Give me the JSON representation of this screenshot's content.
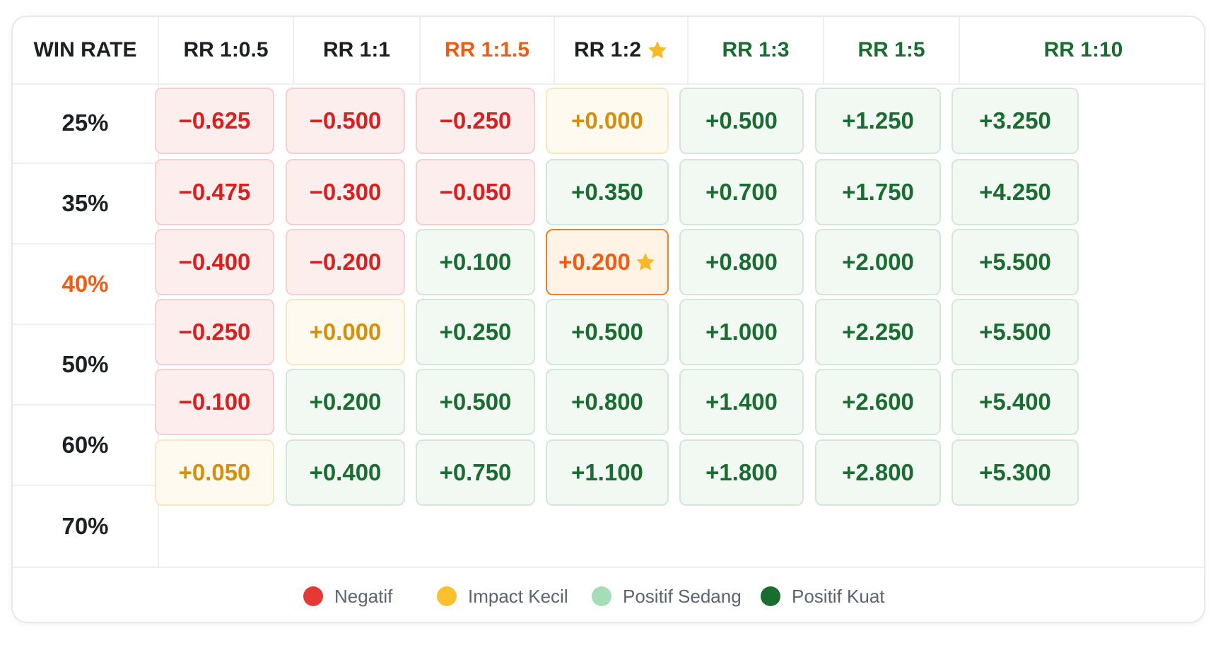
{
  "table": {
    "corner_label": "WIN RATE",
    "columns": [
      {
        "label": "RR 1:0.5",
        "color": "#1c1f24",
        "star": false
      },
      {
        "label": "RR 1:1",
        "color": "#1c1f24",
        "star": false
      },
      {
        "label": "RR 1:1.5",
        "color": "#f15c10",
        "star": false
      },
      {
        "label": "RR 1:2",
        "color": "#1c1f24",
        "star": true
      },
      {
        "label": "RR 1:3",
        "color": "#1a6d31",
        "star": false
      },
      {
        "label": "RR 1:5",
        "color": "#1a6d31",
        "star": false
      },
      {
        "label": "RR 1:10",
        "color": "#1a6d31",
        "star": false
      }
    ],
    "rows": [
      {
        "label": "25%",
        "color": "#1c1f24",
        "cells": [
          {
            "value": "−0.625",
            "kind": "neg"
          },
          {
            "value": "−0.500",
            "kind": "neg"
          },
          {
            "value": "−0.250",
            "kind": "neg"
          },
          {
            "value": "+0.000",
            "kind": "zero"
          },
          {
            "value": "+0.500",
            "kind": "pos"
          },
          {
            "value": "+1.250",
            "kind": "pos"
          },
          {
            "value": "+3.250",
            "kind": "pos"
          }
        ]
      },
      {
        "label": "35%",
        "color": "#1c1f24",
        "cells": [
          {
            "value": "−0.475",
            "kind": "neg"
          },
          {
            "value": "−0.300",
            "kind": "neg"
          },
          {
            "value": "−0.050",
            "kind": "neg"
          },
          {
            "value": "+0.350",
            "kind": "pos"
          },
          {
            "value": "+0.700",
            "kind": "pos"
          },
          {
            "value": "+1.750",
            "kind": "pos"
          },
          {
            "value": "+4.250",
            "kind": "pos"
          }
        ]
      },
      {
        "label": "40%",
        "color": "#f15c10",
        "cells": [
          {
            "value": "−0.400",
            "kind": "neg"
          },
          {
            "value": "−0.200",
            "kind": "neg"
          },
          {
            "value": "+0.100",
            "kind": "pos"
          },
          {
            "value": "+0.200",
            "kind": "hl",
            "star": true
          },
          {
            "value": "+0.800",
            "kind": "pos"
          },
          {
            "value": "+2.000",
            "kind": "pos"
          },
          {
            "value": "+5.500",
            "kind": "pos"
          }
        ]
      },
      {
        "label": "50%",
        "color": "#1c1f24",
        "cells": [
          {
            "value": "−0.250",
            "kind": "neg"
          },
          {
            "value": "+0.000",
            "kind": "zero"
          },
          {
            "value": "+0.250",
            "kind": "pos"
          },
          {
            "value": "+0.500",
            "kind": "pos"
          },
          {
            "value": "+1.000",
            "kind": "pos"
          },
          {
            "value": "+2.250",
            "kind": "pos"
          },
          {
            "value": "+5.500",
            "kind": "pos"
          }
        ]
      },
      {
        "label": "60%",
        "color": "#1c1f24",
        "cells": [
          {
            "value": "−0.100",
            "kind": "neg"
          },
          {
            "value": "+0.200",
            "kind": "pos"
          },
          {
            "value": "+0.500",
            "kind": "pos"
          },
          {
            "value": "+0.800",
            "kind": "pos"
          },
          {
            "value": "+1.400",
            "kind": "pos"
          },
          {
            "value": "+2.600",
            "kind": "pos"
          },
          {
            "value": "+5.400",
            "kind": "pos"
          }
        ]
      },
      {
        "label": "70%",
        "color": "#1c1f24",
        "cells": [
          {
            "value": "+0.050",
            "kind": "zero"
          },
          {
            "value": "+0.400",
            "kind": "pos"
          },
          {
            "value": "+0.750",
            "kind": "pos"
          },
          {
            "value": "+1.100",
            "kind": "pos"
          },
          {
            "value": "+1.800",
            "kind": "pos"
          },
          {
            "value": "+2.800",
            "kind": "pos"
          },
          {
            "value": "+5.300",
            "kind": "pos"
          }
        ]
      }
    ]
  },
  "legend": [
    {
      "label": "Negatif",
      "color": "#e53935"
    },
    {
      "label": "Impact Kecil",
      "color": "#fbc02d"
    },
    {
      "label": "Positif Sedang",
      "color": "#a5ddb6"
    },
    {
      "label": "Positif Kuat",
      "color": "#1a6d31"
    }
  ],
  "star_icon": "star-icon",
  "star_color": "#f7b924"
}
